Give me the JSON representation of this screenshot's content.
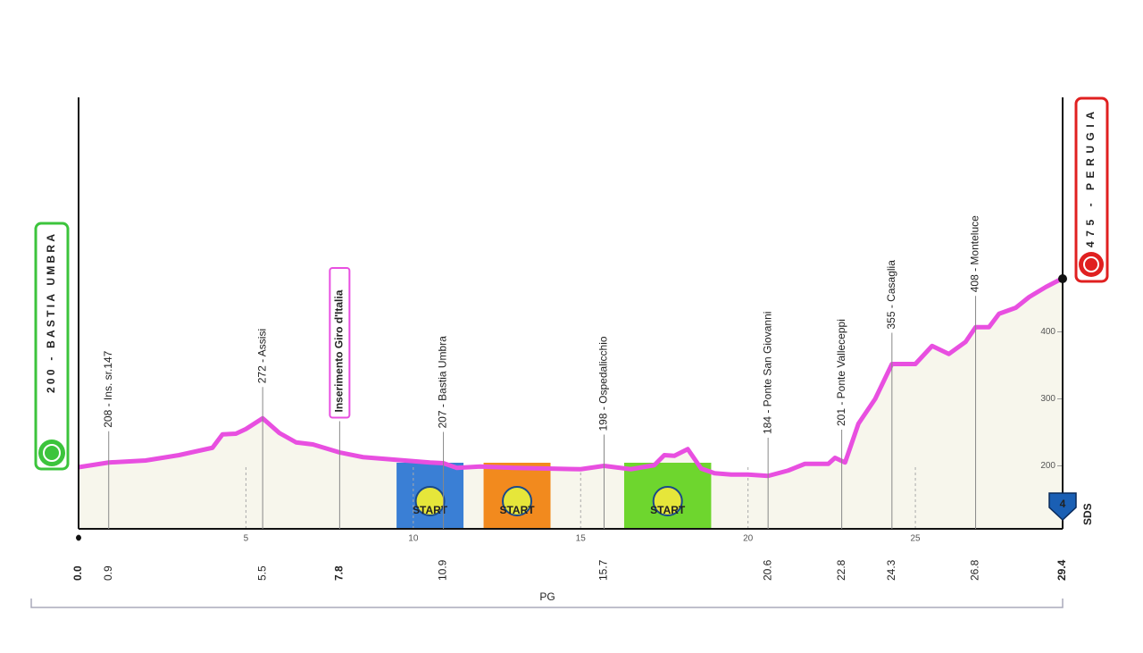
{
  "chart_data": {
    "type": "area",
    "color": "#e84fe0",
    "fill": "#f7f6ec",
    "x": [
      0,
      0.9,
      2,
      3,
      4,
      4.3,
      4.7,
      5,
      5.5,
      6,
      6.5,
      7,
      7.8,
      8.5,
      9.5,
      10.5,
      10.9,
      11.3,
      12,
      13,
      14,
      15,
      15.7,
      16.5,
      17.2,
      17.5,
      17.8,
      18.2,
      18.6,
      19,
      19.5,
      20,
      20.6,
      21.2,
      21.7,
      22.4,
      22.6,
      22.9,
      23.3,
      23.8,
      24.3,
      25,
      25.5,
      26,
      26.5,
      26.8,
      27.2,
      27.5,
      28,
      28.4,
      28.9,
      29.4
    ],
    "values": [
      198,
      205,
      208,
      216,
      227,
      247,
      248,
      255,
      271,
      249,
      235,
      232,
      220,
      213,
      209,
      205,
      204,
      197,
      199,
      197,
      196,
      195,
      200,
      195,
      201,
      216,
      215,
      225,
      196,
      189,
      187,
      187,
      185,
      193,
      203,
      203,
      212,
      205,
      263,
      300,
      352,
      352,
      379,
      367,
      385,
      407,
      407,
      427,
      436,
      452,
      467,
      480
    ],
    "xlim": [
      0,
      29.4
    ],
    "ylim": [
      106,
      750
    ],
    "xticks": [
      0,
      5,
      10,
      15,
      20,
      25
    ],
    "yticks": [
      200,
      300,
      400
    ],
    "grid": true,
    "start": "200 - BASTIA UMBRA",
    "finish": "475 - PERUGIA",
    "region": "PG",
    "badge": {
      "number": "4",
      "label": "SDS"
    },
    "zones": [
      {
        "x": [
          9.5,
          11.5
        ],
        "color": "#3a7fd5",
        "label": "START"
      },
      {
        "x": [
          12.1,
          14.1
        ],
        "color": "#f28a1e",
        "label": "START"
      },
      {
        "x": [
          16.3,
          18.9
        ],
        "color": "#6ed62e",
        "label": "START"
      }
    ],
    "waypoints": [
      {
        "km": {
          "value": 0,
          "label": "0.0"
        },
        "bold": true
      },
      {
        "km": 0.9,
        "name": "208 - Ins. sr.147"
      },
      {
        "km": 5.5,
        "name": "272 - Assisi"
      },
      {
        "km": 7.8,
        "name": "Inserimento Giro d'Italia",
        "bold": true,
        "boxed": true
      },
      {
        "km": 10.9,
        "name": "207 - Bastia Umbra"
      },
      {
        "km": 15.7,
        "name": "198 - Ospedalicchio"
      },
      {
        "km": 20.6,
        "name": "184 - Ponte San Giovanni"
      },
      {
        "km": 22.8,
        "name": "201 - Ponte Valleceppi"
      },
      {
        "km": 24.3,
        "name": "355 - Casaglia"
      },
      {
        "km": 26.8,
        "name": "408 - Monteluce"
      },
      {
        "km": 29.4,
        "bold": true
      }
    ]
  }
}
